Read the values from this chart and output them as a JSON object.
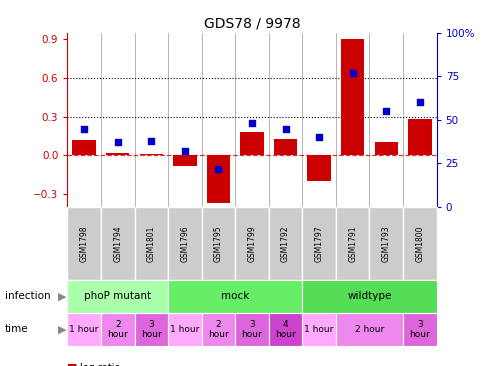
{
  "title": "GDS78 / 9978",
  "samples": [
    "GSM1798",
    "GSM1794",
    "GSM1801",
    "GSM1796",
    "GSM1795",
    "GSM1799",
    "GSM1792",
    "GSM1797",
    "GSM1791",
    "GSM1793",
    "GSM1800"
  ],
  "log_ratio": [
    0.12,
    0.02,
    0.01,
    -0.08,
    -0.37,
    0.18,
    0.13,
    -0.2,
    0.9,
    0.1,
    0.28
  ],
  "percentile": [
    45,
    37,
    38,
    32,
    22,
    48,
    45,
    40,
    77,
    55,
    60
  ],
  "bar_color": "#cc0000",
  "dot_color": "#0000cc",
  "ylim_left": [
    -0.4,
    0.95
  ],
  "ylim_right": [
    0,
    100
  ],
  "yticks_left": [
    -0.3,
    0.0,
    0.3,
    0.6,
    0.9
  ],
  "yticks_right": [
    0,
    25,
    50,
    75,
    100
  ],
  "hlines": [
    0.3,
    0.6
  ],
  "infection_groups": [
    {
      "label": "phoP mutant",
      "start": 0,
      "end": 3,
      "color": "#aaffaa"
    },
    {
      "label": "mock",
      "start": 3,
      "end": 7,
      "color": "#66ee66"
    },
    {
      "label": "wildtype",
      "start": 7,
      "end": 11,
      "color": "#55dd55"
    }
  ],
  "time_groups": [
    {
      "label": "1 hour",
      "start": 0,
      "end": 1,
      "color": "#ffaaff"
    },
    {
      "label": "2\nhour",
      "start": 1,
      "end": 2,
      "color": "#ee88ee"
    },
    {
      "label": "3\nhour",
      "start": 2,
      "end": 3,
      "color": "#dd66dd"
    },
    {
      "label": "1 hour",
      "start": 3,
      "end": 4,
      "color": "#ffaaff"
    },
    {
      "label": "2\nhour",
      "start": 4,
      "end": 5,
      "color": "#ee88ee"
    },
    {
      "label": "3\nhour",
      "start": 5,
      "end": 6,
      "color": "#dd66dd"
    },
    {
      "label": "4\nhour",
      "start": 6,
      "end": 7,
      "color": "#cc44cc"
    },
    {
      "label": "1 hour",
      "start": 7,
      "end": 8,
      "color": "#ffaaff"
    },
    {
      "label": "2 hour",
      "start": 8,
      "end": 10,
      "color": "#ee88ee"
    },
    {
      "label": "3\nhour",
      "start": 10,
      "end": 11,
      "color": "#dd66dd"
    }
  ],
  "left_axis_color": "#cc0000",
  "right_axis_color": "#0000cc",
  "bg_color": "#ffffff",
  "label_bg": "#cccccc"
}
